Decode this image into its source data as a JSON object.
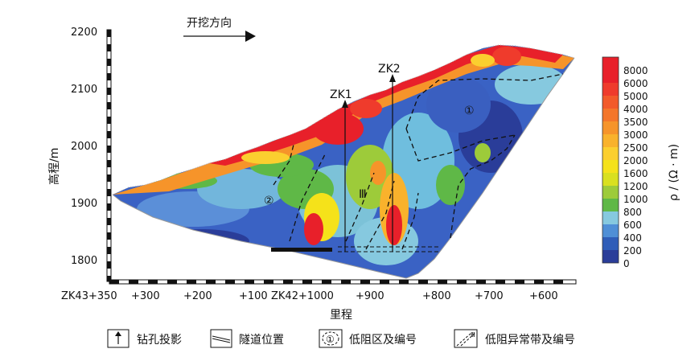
{
  "figure": {
    "direction_label": "开挖方向",
    "y_axis_label": "高程/m",
    "x_axis_label": "里程",
    "colorbar_label": "ρ / (Ω · m)",
    "y_ticks": [
      "2200",
      "2100",
      "2000",
      "1900",
      "1800"
    ],
    "x_ticks": [
      "ZK43+350",
      "+300",
      "+200",
      "+100",
      "ZK42+1000",
      "+900",
      "+800",
      "+700",
      "+600"
    ],
    "colorbar_ticks": [
      "8000",
      "6000",
      "5000",
      "4000",
      "3500",
      "3000",
      "2500",
      "2000",
      "1600",
      "1200",
      "1000",
      "800",
      "600",
      "400",
      "200",
      "0"
    ],
    "colorbar_colors": [
      "#e8202a",
      "#e8202a",
      "#ef3b2c",
      "#f25a2a",
      "#f4762a",
      "#f6942a",
      "#f9b22c",
      "#fbcf2f",
      "#f5e21a",
      "#d9e020",
      "#9dcb3a",
      "#5fb847",
      "#86c9df",
      "#4f8fd6",
      "#2f5db8",
      "#2a3d99"
    ],
    "borehole_1": "ZK1",
    "borehole_2": "ZK2",
    "zone_1": "①",
    "zone_2": "②",
    "zone_3": "Ⅲ",
    "legend": {
      "borehole": "钻孔投影",
      "tunnel": "隧道位置",
      "low_res_zone": "低阻区及编号",
      "low_res_band": "低阻异常带及编号"
    }
  }
}
